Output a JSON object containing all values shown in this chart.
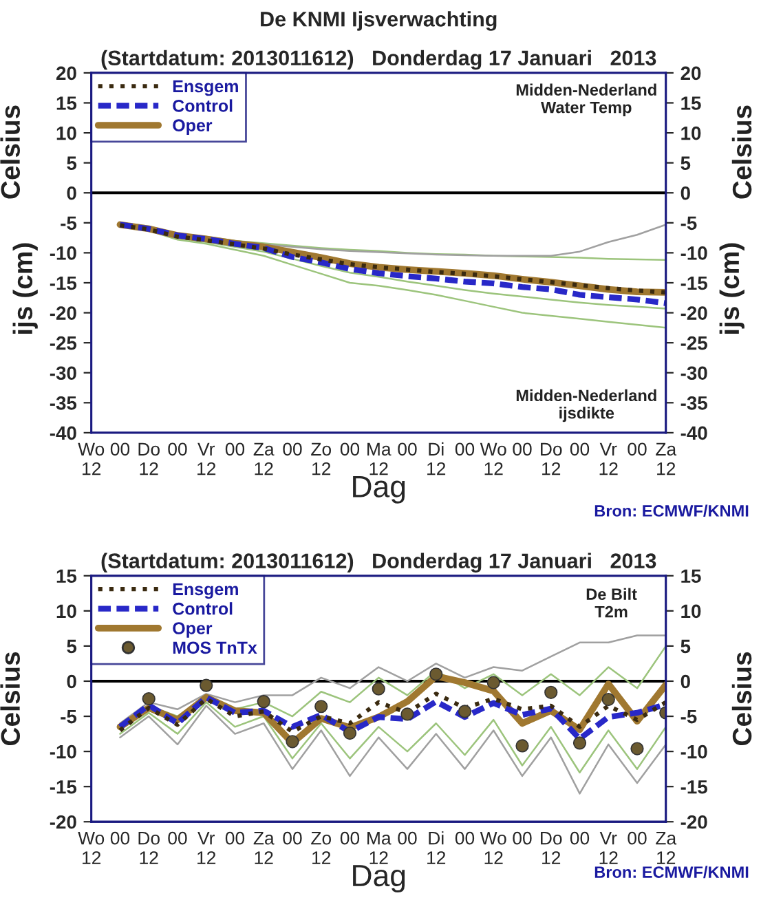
{
  "chart_data": [
    {
      "type": "line",
      "title": "De KNMI Ijsverwachting",
      "subtitle": "(Startdatum: 2013011612)   Donderdag 17 Januari   2013",
      "xlabel": "Dag",
      "ylabel": "Celsius",
      "y2label": "Celsius",
      "annotations": [
        "Midden-Nederland\nWater Temp",
        "Midden-Nederland\nijsdikte",
        "ijs (cm)",
        "ijs (cm)",
        "Bron: ECMWF/KNMI"
      ],
      "x": [
        "2013-01-17T00:00",
        "2013-01-17T12:00",
        "2013-01-18T00:00",
        "2013-01-18T12:00",
        "2013-01-19T00:00",
        "2013-01-19T12:00",
        "2013-01-20T00:00",
        "2013-01-20T12:00",
        "2013-01-21T00:00",
        "2013-01-21T12:00",
        "2013-01-22T00:00",
        "2013-01-22T12:00",
        "2013-01-23T00:00",
        "2013-01-23T12:00",
        "2013-01-24T00:00",
        "2013-01-24T12:00",
        "2013-01-25T00:00",
        "2013-01-25T12:00",
        "2013-01-26T00:00",
        "2013-01-26T12:00"
      ],
      "series": [
        {
          "color": "#9cc47c",
          "values": [
            -5.0,
            -5.6,
            -6.8,
            -7.3,
            -8.0,
            -8.4,
            -8.8,
            -9.2,
            -9.5,
            -9.7,
            -10.0,
            -10.2,
            -10.3,
            -10.5,
            -10.6,
            -10.7,
            -10.8,
            -11.0,
            -11.1,
            -11.2
          ]
        },
        {
          "color": "#a0a0a0",
          "values": [
            -5.1,
            -5.8,
            -7.0,
            -7.5,
            -8.2,
            -8.6,
            -9.0,
            -9.4,
            -9.7,
            -9.9,
            -10.1,
            -10.3,
            -10.4,
            -10.5,
            -10.5,
            -10.5,
            -9.8,
            -8.2,
            -7.0,
            -5.3
          ]
        },
        {
          "color": "#9cc47c",
          "values": [
            -5.5,
            -6.2,
            -7.5,
            -8.2,
            -9.0,
            -9.8,
            -11.0,
            -12.2,
            -13.3,
            -14.0,
            -14.8,
            -15.5,
            -16.2,
            -16.8,
            -17.3,
            -17.8,
            -18.3,
            -18.7,
            -19.0,
            -19.3
          ]
        },
        {
          "color": "#9cc47c",
          "values": [
            -5.6,
            -6.3,
            -7.8,
            -8.5,
            -9.5,
            -10.5,
            -12.0,
            -13.5,
            -15.0,
            -15.5,
            -16.2,
            -17.0,
            -18.0,
            -19.0,
            -20.0,
            -20.5,
            -21.0,
            -21.5,
            -22.0,
            -22.5
          ]
        },
        {
          "name": "Ensgem",
          "color": "#3a2a10",
          "line_style": "dotted",
          "values": [
            -5.4,
            -6.1,
            -7.3,
            -7.9,
            -8.6,
            -9.3,
            -10.3,
            -11.1,
            -11.9,
            -12.4,
            -12.8,
            -13.2,
            -13.5,
            -13.9,
            -14.4,
            -14.9,
            -15.4,
            -15.9,
            -16.3,
            -16.6
          ]
        },
        {
          "name": "Control",
          "color": "#2828c8",
          "line_style": "dashed",
          "values": [
            -5.3,
            -6.0,
            -7.1,
            -7.7,
            -8.5,
            -9.2,
            -10.7,
            -11.6,
            -12.7,
            -13.4,
            -13.9,
            -14.3,
            -14.8,
            -15.1,
            -15.7,
            -16.1,
            -17.0,
            -17.4,
            -17.8,
            -18.4
          ]
        },
        {
          "name": "Oper",
          "color": "#a07830",
          "line_style": "solid",
          "values": [
            -5.3,
            -6.0,
            -7.1,
            -7.7,
            -8.4,
            -9.0,
            -9.9,
            -10.8,
            -11.8,
            -12.4,
            -12.8,
            -13.1,
            -13.4,
            -13.8,
            -14.4,
            -14.9,
            -15.5,
            -16.1,
            -16.5,
            -16.6
          ]
        }
      ],
      "xlim": [
        "2013-01-16T12:00",
        "2013-01-26T12:00"
      ],
      "xticks": [
        {
          "value": "2013-01-16T12:00",
          "label": "Wo\n12"
        },
        {
          "value": "2013-01-17T00:00",
          "label": "00"
        },
        {
          "value": "2013-01-17T12:00",
          "label": "Do\n12"
        },
        {
          "value": "2013-01-18T00:00",
          "label": "00"
        },
        {
          "value": "2013-01-18T12:00",
          "label": "Vr\n12"
        },
        {
          "value": "2013-01-19T00:00",
          "label": "00"
        },
        {
          "value": "2013-01-19T12:00",
          "label": "Za\n12"
        },
        {
          "value": "2013-01-20T00:00",
          "label": "00"
        },
        {
          "value": "2013-01-20T12:00",
          "label": "Zo\n12"
        },
        {
          "value": "2013-01-21T00:00",
          "label": "00"
        },
        {
          "value": "2013-01-21T12:00",
          "label": "Ma\n12"
        },
        {
          "value": "2013-01-22T00:00",
          "label": "00"
        },
        {
          "value": "2013-01-22T12:00",
          "label": "Di\n12"
        },
        {
          "value": "2013-01-23T00:00",
          "label": "00"
        },
        {
          "value": "2013-01-23T12:00",
          "label": "Wo\n12"
        },
        {
          "value": "2013-01-24T00:00",
          "label": "00"
        },
        {
          "value": "2013-01-24T12:00",
          "label": "Do\n12"
        },
        {
          "value": "2013-01-25T00:00",
          "label": "00"
        },
        {
          "value": "2013-01-25T12:00",
          "label": "Vr\n12"
        },
        {
          "value": "2013-01-26T00:00",
          "label": "00"
        },
        {
          "value": "2013-01-26T12:00",
          "label": "Za\n12"
        }
      ],
      "ylim": [
        -40,
        20
      ],
      "yticks": [
        -40,
        -35,
        -30,
        -25,
        -20,
        -15,
        -10,
        -5,
        0,
        5,
        10,
        15,
        20
      ],
      "y2lim": [
        -40,
        20
      ],
      "y2ticks": [
        -40,
        -35,
        -30,
        -25,
        -20,
        -15,
        -10,
        -5,
        0,
        5,
        10,
        15,
        20
      ],
      "ref_lines": [
        {
          "axis": "y",
          "value": 0,
          "color": "#000000"
        }
      ],
      "legend": "top left",
      "grid": false
    },
    {
      "type": "line",
      "title": "(Startdatum: 2013011612)   Donderdag 17 Januari   2013",
      "xlabel": "Dag",
      "ylabel": "Celsius",
      "y2label": "Celsius",
      "annotations": [
        "De Bilt\nT2m",
        "Bron: ECMWF/KNMI"
      ],
      "x": [
        "2013-01-17T00:00",
        "2013-01-17T12:00",
        "2013-01-18T00:00",
        "2013-01-18T12:00",
        "2013-01-19T00:00",
        "2013-01-19T12:00",
        "2013-01-20T00:00",
        "2013-01-20T12:00",
        "2013-01-21T00:00",
        "2013-01-21T12:00",
        "2013-01-22T00:00",
        "2013-01-22T12:00",
        "2013-01-23T00:00",
        "2013-01-23T12:00",
        "2013-01-24T00:00",
        "2013-01-24T12:00",
        "2013-01-25T00:00",
        "2013-01-25T12:00",
        "2013-01-26T00:00",
        "2013-01-26T12:00"
      ],
      "series": [
        {
          "color": "#a0a0a0",
          "values": [
            -6.0,
            -3.0,
            -4.0,
            -1.8,
            -3.0,
            -2.0,
            -2.0,
            0.5,
            -1.0,
            2.0,
            0.0,
            2.5,
            0.5,
            2.0,
            1.5,
            3.5,
            5.5,
            5.5,
            6.5,
            6.5
          ]
        },
        {
          "color": "#9cc47c",
          "values": [
            -6.5,
            -3.5,
            -5.0,
            -2.2,
            -4.0,
            -3.0,
            -5.0,
            -1.5,
            -3.0,
            0.5,
            -2.0,
            1.5,
            -1.0,
            1.0,
            -2.0,
            1.0,
            -2.0,
            2.0,
            -1.0,
            5.0
          ]
        },
        {
          "color": "#9cc47c",
          "values": [
            -7.5,
            -4.5,
            -7.5,
            -3.0,
            -6.5,
            -5.0,
            -11.0,
            -6.0,
            -11.0,
            -6.5,
            -10.0,
            -6.0,
            -10.5,
            -5.5,
            -12.0,
            -6.5,
            -13.0,
            -7.0,
            -12.5,
            -6.5
          ]
        },
        {
          "color": "#a0a0a0",
          "values": [
            -8.0,
            -5.0,
            -9.0,
            -3.5,
            -7.5,
            -6.0,
            -12.5,
            -7.0,
            -13.5,
            -8.0,
            -12.5,
            -7.5,
            -12.5,
            -7.0,
            -13.5,
            -8.0,
            -16.0,
            -9.0,
            -14.5,
            -9.0
          ]
        },
        {
          "name": "Ensgem",
          "color": "#3a2a10",
          "line_style": "dotted",
          "values": [
            -7.0,
            -3.8,
            -6.2,
            -2.5,
            -5.0,
            -4.3,
            -7.2,
            -5.0,
            -6.0,
            -3.0,
            -4.5,
            -1.8,
            -3.8,
            -2.5,
            -4.0,
            -3.5,
            -6.5,
            -3.5,
            -5.5,
            -3.0
          ]
        },
        {
          "name": "Control",
          "color": "#2828c8",
          "line_style": "dashed",
          "values": [
            -6.5,
            -3.4,
            -6.0,
            -2.3,
            -4.5,
            -4.2,
            -6.5,
            -4.8,
            -7.2,
            -5.1,
            -5.4,
            -2.9,
            -5.1,
            -3.1,
            -4.8,
            -3.9,
            -8.2,
            -5.1,
            -4.5,
            -3.3
          ]
        },
        {
          "name": "Oper",
          "color": "#a07830",
          "line_style": "solid",
          "values": [
            -6.5,
            -3.8,
            -5.5,
            -2.3,
            -4.2,
            -4.5,
            -8.8,
            -5.3,
            -6.6,
            -5.1,
            -2.9,
            0.7,
            -0.2,
            -1.4,
            -6.0,
            -4.2,
            -6.9,
            -0.4,
            -5.7,
            -0.5
          ]
        },
        {
          "name": "MOS TnTx",
          "type": "scatter",
          "marker": "circle",
          "color": "#6b5a30",
          "x": [
            "2013-01-17T12:00",
            "2013-01-18T12:00",
            "2013-01-19T12:00",
            "2013-01-20T00:00",
            "2013-01-20T12:00",
            "2013-01-21T00:00",
            "2013-01-21T12:00",
            "2013-01-22T00:00",
            "2013-01-22T12:00",
            "2013-01-23T00:00",
            "2013-01-23T12:00",
            "2013-01-24T00:00",
            "2013-01-24T12:00",
            "2013-01-25T00:00",
            "2013-01-25T12:00",
            "2013-01-26T00:00",
            "2013-01-26T12:00"
          ],
          "values": [
            -2.5,
            -0.6,
            -2.9,
            -8.6,
            -3.6,
            -7.4,
            -1.1,
            -4.7,
            1.0,
            -4.3,
            -0.2,
            -9.2,
            -1.6,
            -8.8,
            -2.6,
            -9.6,
            -4.5
          ]
        }
      ],
      "xlim": [
        "2013-01-16T12:00",
        "2013-01-26T12:00"
      ],
      "xticks": [
        {
          "value": "2013-01-16T12:00",
          "label": "Wo\n12"
        },
        {
          "value": "2013-01-17T00:00",
          "label": "00"
        },
        {
          "value": "2013-01-17T12:00",
          "label": "Do\n12"
        },
        {
          "value": "2013-01-18T00:00",
          "label": "00"
        },
        {
          "value": "2013-01-18T12:00",
          "label": "Vr\n12"
        },
        {
          "value": "2013-01-19T00:00",
          "label": "00"
        },
        {
          "value": "2013-01-19T12:00",
          "label": "Za\n12"
        },
        {
          "value": "2013-01-20T00:00",
          "label": "00"
        },
        {
          "value": "2013-01-20T12:00",
          "label": "Zo\n12"
        },
        {
          "value": "2013-01-21T00:00",
          "label": "00"
        },
        {
          "value": "2013-01-21T12:00",
          "label": "Ma\n12"
        },
        {
          "value": "2013-01-22T00:00",
          "label": "00"
        },
        {
          "value": "2013-01-22T12:00",
          "label": "Di\n12"
        },
        {
          "value": "2013-01-23T00:00",
          "label": "00"
        },
        {
          "value": "2013-01-23T12:00",
          "label": "Wo\n12"
        },
        {
          "value": "2013-01-24T00:00",
          "label": "00"
        },
        {
          "value": "2013-01-24T12:00",
          "label": "Do\n12"
        },
        {
          "value": "2013-01-25T00:00",
          "label": "00"
        },
        {
          "value": "2013-01-25T12:00",
          "label": "Vr\n12"
        },
        {
          "value": "2013-01-26T00:00",
          "label": "00"
        },
        {
          "value": "2013-01-26T12:00",
          "label": "Za\n12"
        }
      ],
      "ylim": [
        -20,
        15
      ],
      "yticks": [
        -20,
        -15,
        -10,
        -5,
        0,
        5,
        10,
        15
      ],
      "y2lim": [
        -20,
        15
      ],
      "y2ticks": [
        -20,
        -15,
        -10,
        -5,
        0,
        5,
        10,
        15
      ],
      "ref_lines": [
        {
          "axis": "y",
          "value": 0,
          "color": "#000000"
        }
      ],
      "legend": "top left",
      "grid": false
    }
  ]
}
